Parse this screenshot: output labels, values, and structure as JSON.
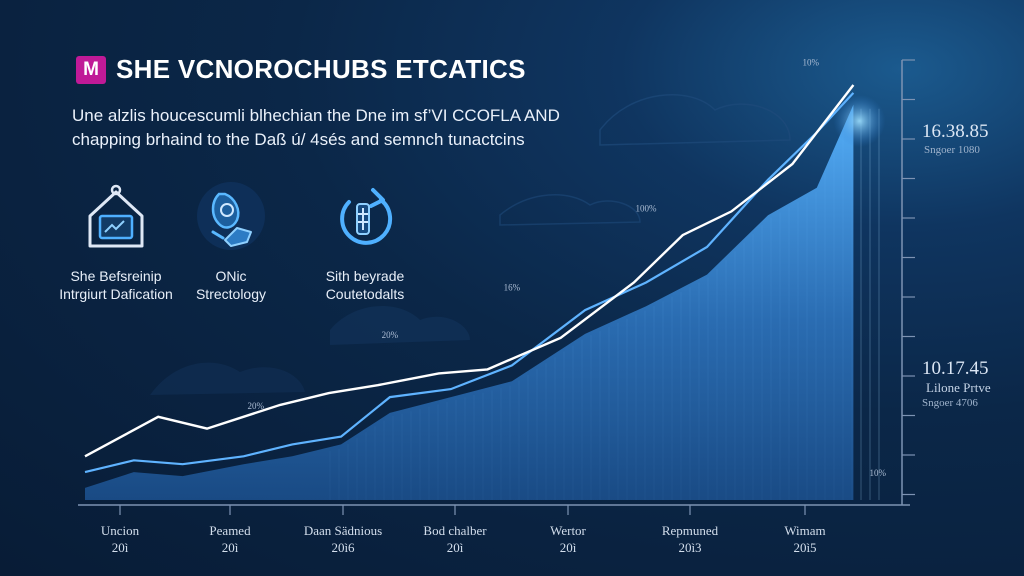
{
  "brand": {
    "logo_letter": "M",
    "title": "SHE VCNOROCHUBS ETCATICS"
  },
  "subtitle": {
    "line1": "Une alzlis houcescumli blhechian the Dne im sf’VI CCOFLA AND",
    "line2": "chapping brhaind to the Daß ú/ 4sés and semnch tunactcins"
  },
  "features": [
    {
      "icon": "house-frame-icon",
      "label_line1": "She Befsreinip",
      "label_line2": "Intrgiurt Dafication"
    },
    {
      "icon": "hand-coin-icon",
      "label_line1": "ONic",
      "label_line2": "Strectology"
    },
    {
      "icon": "refresh-bolt-icon",
      "label_line1": "Sith beyrade",
      "label_line2": "Coutetodalts"
    }
  ],
  "side_panel": {
    "top_value": "16.38.85",
    "top_sub": "Sngoer 1080",
    "bottom_value": "10.17.45",
    "bottom_line": "Lilone Prtve",
    "bottom_sub": "Sngoer 4706"
  },
  "colors": {
    "background": "#0b2748",
    "area": "#3f8fd6",
    "line_white": "#ffffff",
    "line_blue": "#5fb3ff",
    "logo": "#c01a97"
  },
  "chart_data": {
    "type": "area",
    "title": "",
    "xlabel": "",
    "ylabel": "",
    "x_categories": [
      {
        "name": "Uncion",
        "year": "20ì"
      },
      {
        "name": "Peamed",
        "year": "20ì"
      },
      {
        "name": "Daan Sädnious",
        "year": "20ì6"
      },
      {
        "name": "Bod chalber",
        "year": "20ì"
      },
      {
        "name": "Wertor",
        "year": "20ì"
      },
      {
        "name": "Repmuned",
        "year": "20ì3"
      },
      {
        "name": "Wimam",
        "year": "20ì5"
      }
    ],
    "x_range": [
      0,
      6.6
    ],
    "y_range": [
      0,
      100
    ],
    "series": [
      {
        "values": [
          [
            0,
            6
          ],
          [
            0.6,
            16
          ],
          [
            1.0,
            13
          ],
          [
            1.6,
            19
          ],
          [
            2.0,
            22
          ],
          [
            2.4,
            24
          ],
          [
            2.9,
            27
          ],
          [
            3.3,
            28
          ],
          [
            3.9,
            36
          ],
          [
            4.5,
            50
          ],
          [
            4.9,
            62
          ],
          [
            5.3,
            68
          ],
          [
            5.8,
            80
          ],
          [
            6.3,
            100
          ]
        ]
      },
      {
        "values": [
          [
            0,
            2
          ],
          [
            0.4,
            5
          ],
          [
            0.8,
            4
          ],
          [
            1.3,
            6
          ],
          [
            1.7,
            9
          ],
          [
            2.1,
            11
          ],
          [
            2.5,
            21
          ],
          [
            3.0,
            23
          ],
          [
            3.5,
            29
          ],
          [
            4.1,
            43
          ],
          [
            4.6,
            50
          ],
          [
            5.1,
            59
          ],
          [
            5.6,
            76
          ],
          [
            6.0,
            88
          ],
          [
            6.3,
            98
          ]
        ]
      },
      {
        "values": [
          [
            0,
            -2
          ],
          [
            0.4,
            2
          ],
          [
            0.8,
            1
          ],
          [
            1.3,
            4
          ],
          [
            1.7,
            6
          ],
          [
            2.1,
            9
          ],
          [
            2.5,
            17
          ],
          [
            3.0,
            21
          ],
          [
            3.5,
            25
          ],
          [
            4.1,
            37
          ],
          [
            4.6,
            44
          ],
          [
            5.1,
            52
          ],
          [
            5.6,
            67
          ],
          [
            6.0,
            74
          ],
          [
            6.3,
            95
          ]
        ]
      }
    ],
    "data_labels": [
      {
        "x": 1.4,
        "y": 18,
        "text": "20%"
      },
      {
        "x": 2.5,
        "y": 36,
        "text": "20%"
      },
      {
        "x": 3.5,
        "y": 48,
        "text": "16%"
      },
      {
        "x": 4.6,
        "y": 68,
        "text": "100%"
      },
      {
        "x": 5.95,
        "y": 105,
        "text": "10%"
      },
      {
        "x": 6.5,
        "y": 1,
        "text": "10%"
      }
    ],
    "grid": false
  }
}
